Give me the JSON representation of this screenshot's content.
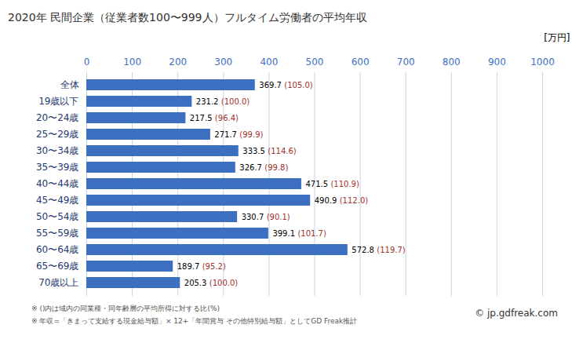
{
  "chart_data": {
    "type": "bar",
    "title": "2020年 民間企業（従業者数100〜999人）フルタイム労働者の平均年収",
    "x_label": "[万円]",
    "categories": [
      "全体",
      "19歳以下",
      "20〜24歳",
      "25〜29歳",
      "30〜34歳",
      "35〜39歳",
      "40〜44歳",
      "45〜49歳",
      "50〜54歳",
      "55〜59歳",
      "60〜64歳",
      "65〜69歳",
      "70歳以上"
    ],
    "values": [
      369.7,
      231.2,
      217.5,
      271.7,
      333.5,
      326.7,
      471.5,
      490.9,
      330.7,
      399.1,
      572.8,
      189.7,
      205.3
    ],
    "ratio_labels": [
      "(105.0)",
      "(100.0)",
      "(96.4)",
      "(99.9)",
      "(114.6)",
      "(99.8)",
      "(110.9)",
      "(112.0)",
      "(90.1)",
      "(101.7)",
      "(119.7)",
      "(95.2)",
      "(100.0)"
    ],
    "color": "#3d6fc0",
    "orientation": "horizontal",
    "xlim": [
      0,
      1000
    ],
    "xticks": [
      0,
      100,
      200,
      300,
      400,
      500,
      600,
      700,
      800,
      900,
      1000
    ],
    "grid": true,
    "data_labels": true,
    "notes": [
      "※ ()内は域内の同業種・同年齢層の平均所得に対する比(%)",
      "※ 年収=「きまって支給する現金給与額」× 12+「年間賞与 その他特別給与額」としてGD Freak推計"
    ],
    "source": "© jp.gdfreak.com"
  }
}
